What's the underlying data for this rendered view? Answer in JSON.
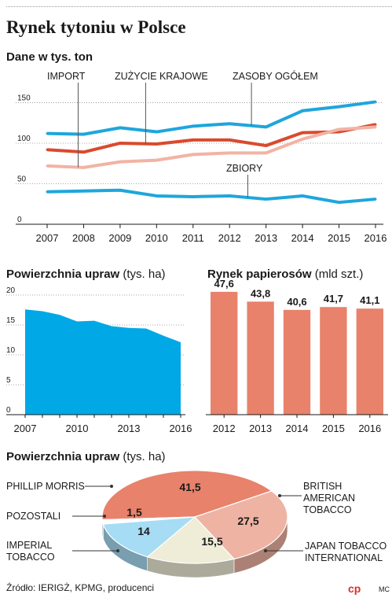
{
  "title": "Rynek tytoniu w Polsce",
  "colors": {
    "blue": "#1ea6dc",
    "red": "#d94a2e",
    "pink": "#f2b3a4",
    "bar": "#e8826b",
    "area": "#00a8e6",
    "axis": "#1a1a1a"
  },
  "footer": {
    "source": "Źródło: IERIGŻ, KPMG, producenci",
    "logo": "cp",
    "author": "MC"
  },
  "chart_data": [
    {
      "type": "line",
      "title": "Dane w tys. ton",
      "x": [
        "2007",
        "2008",
        "2009",
        "2010",
        "2011",
        "2012",
        "2013",
        "2014",
        "2015",
        "2016"
      ],
      "ylim": [
        0,
        165
      ],
      "yticks": [
        0,
        50,
        100,
        150
      ],
      "grid": true,
      "series": [
        {
          "name": "ZASOBY OGÓŁEM",
          "color": "#1ea6dc",
          "values": [
            112,
            111,
            119,
            114,
            121,
            124,
            120,
            140,
            145,
            151
          ]
        },
        {
          "name": "ZUŻYCIE KRAJOWE",
          "color": "#d94a2e",
          "values": [
            92,
            89,
            100,
            99,
            104,
            104,
            97,
            113,
            114,
            123
          ]
        },
        {
          "name": "IMPORT",
          "color": "#f2b3a4",
          "values": [
            72,
            70,
            77,
            79,
            86,
            88,
            88,
            105,
            117,
            120
          ]
        },
        {
          "name": "ZBIORY",
          "color": "#1ea6dc",
          "values": [
            40,
            41,
            42,
            35,
            34,
            35,
            31,
            35,
            27,
            31
          ]
        }
      ]
    },
    {
      "type": "area",
      "title": "Powierzchnia upraw",
      "unit": "(tys. ha)",
      "x": [
        2007,
        2008,
        2009,
        2010,
        2011,
        2012,
        2013,
        2014,
        2015,
        2016
      ],
      "values": [
        17.6,
        17.3,
        16.7,
        15.6,
        15.7,
        14.8,
        14.5,
        14.4,
        13.2,
        12.1
      ],
      "ylim": [
        0,
        20
      ],
      "yticks": [
        0,
        5,
        10,
        15,
        20
      ],
      "xticks": [
        "2007",
        "2010",
        "2013",
        "2016"
      ],
      "grid": true
    },
    {
      "type": "bar",
      "title": "Rynek papierosów",
      "unit": "(mld szt.)",
      "categories": [
        "2012",
        "2013",
        "2014",
        "2015",
        "2016"
      ],
      "values": [
        47.6,
        43.8,
        40.6,
        41.7,
        41.1
      ],
      "labels": [
        "47,6",
        "43,8",
        "40,6",
        "41,7",
        "41,1"
      ],
      "ylim": [
        0,
        50
      ]
    },
    {
      "type": "pie",
      "title": "Powierzchnia upraw",
      "unit": "(tys. ha)",
      "slices": [
        {
          "name": "PHILLIP MORRIS",
          "value": 41.5,
          "label": "41,5",
          "color": "#e8826b"
        },
        {
          "name": "BRITISH AMERICAN TOBACCO",
          "value": 27.5,
          "label": "27,5",
          "color": "#efb3a3"
        },
        {
          "name": "JAPAN TOBACCO INTERNATIONAL",
          "value": 15.5,
          "label": "15,5",
          "color": "#efecd7"
        },
        {
          "name": "IMPERIAL TOBACCO",
          "value": 14,
          "label": "14",
          "color": "#a6dcf4"
        },
        {
          "name": "POZOSTALI",
          "value": 1.5,
          "label": "1,5",
          "color": "#ffffff"
        }
      ],
      "legend": [
        {
          "text": "PHILLIP MORRIS"
        },
        {
          "text": "POZOSTALI"
        },
        {
          "text": "IMPERIAL\nTOBACCO"
        },
        {
          "text": "BRITISH\nAMERICAN\nTOBACCO"
        },
        {
          "text": "JAPAN TOBACCO\nINTERNATIONAL"
        }
      ]
    }
  ]
}
